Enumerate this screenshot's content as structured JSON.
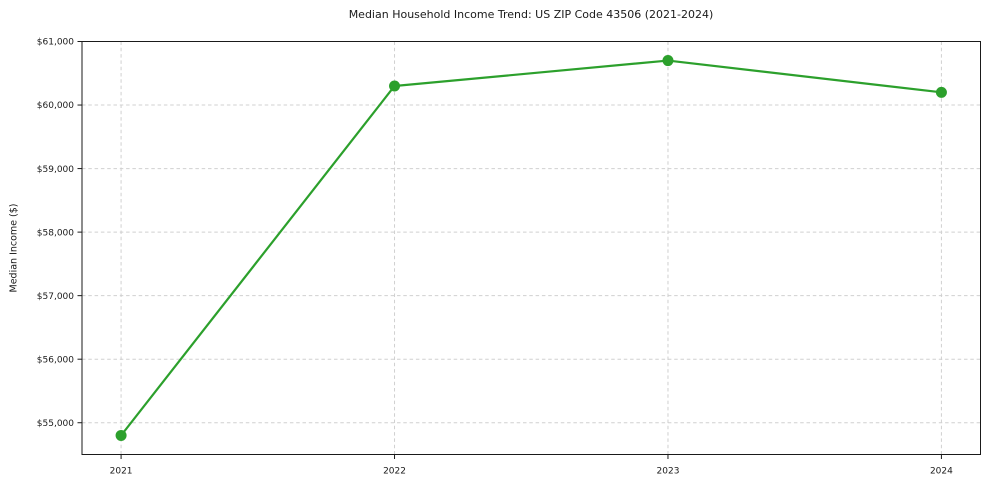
{
  "chart_data": {
    "type": "line",
    "title": "Median Household Income Trend: US ZIP Code 43506 (2021-2024)",
    "xlabel": "",
    "ylabel": "Median Income ($)",
    "categories": [
      "2021",
      "2022",
      "2023",
      "2024"
    ],
    "series": [
      {
        "name": "Median Household Income",
        "values": [
          54800,
          60300,
          60700,
          60200
        ],
        "color": "#2ca02c",
        "marker": "circle"
      }
    ],
    "ylim": [
      54500,
      61000
    ],
    "yticks": [
      55000,
      56000,
      57000,
      58000,
      59000,
      60000,
      61000
    ],
    "ytick_prefix": "$",
    "grid": "on",
    "grid_style": "dashed",
    "legend": "none",
    "colors": {
      "line": "#2ca02c",
      "grid": "#d0d0d0",
      "axis": "#1a1a1a",
      "text": "#1a1a1a",
      "background": "#ffffff"
    }
  }
}
